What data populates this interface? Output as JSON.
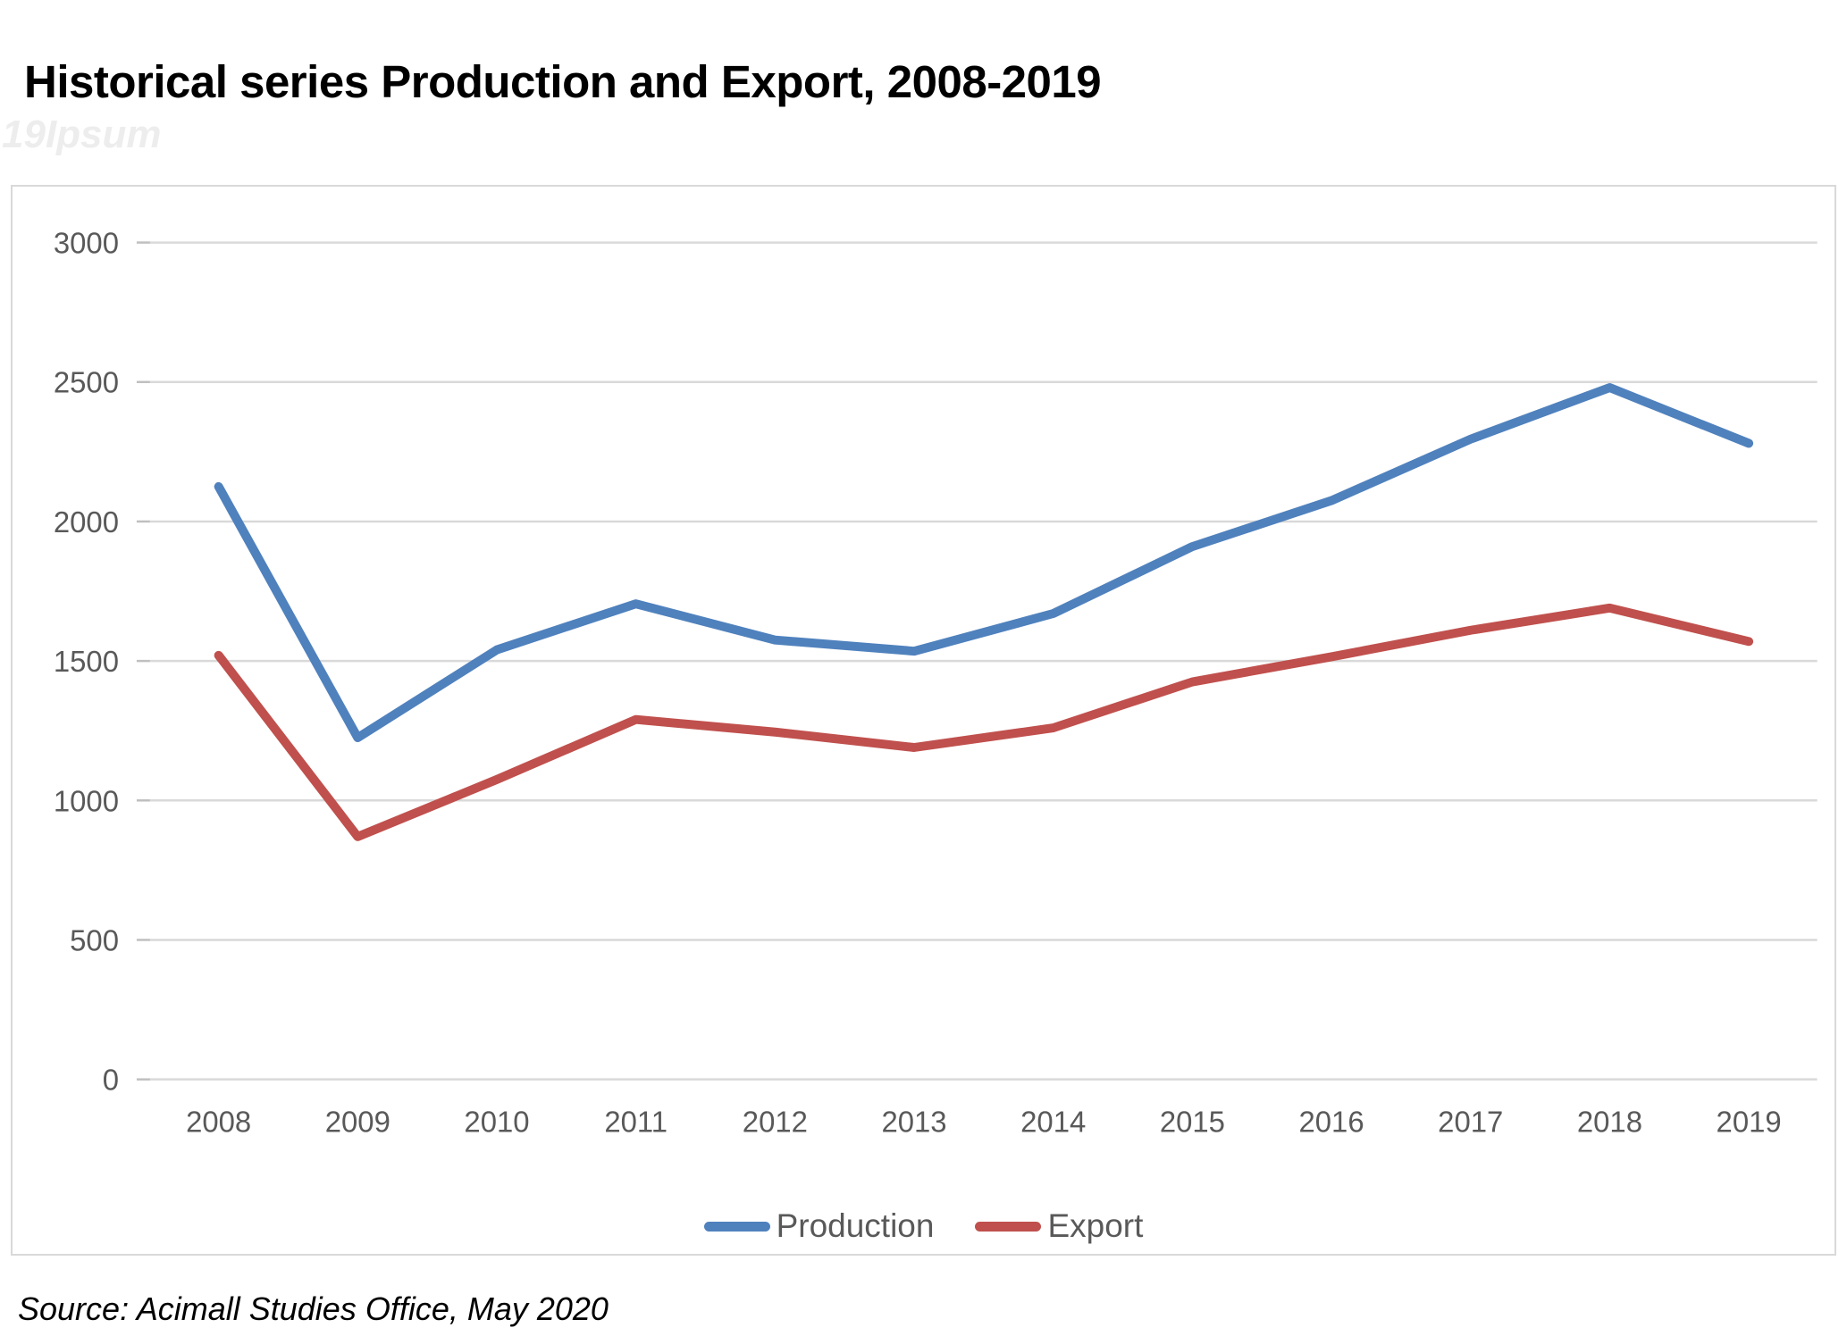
{
  "title": "Historical series Production and Export, 2008-2019",
  "watermark": "19Ipsum",
  "source": "Source: Acimall Studies Office, May 2020",
  "colors": {
    "production": "#4F81BD",
    "export": "#C0504D",
    "gridline": "#d9d9d9",
    "tick": "#bfbfbf",
    "axis_text": "#595959",
    "border": "#d9d9d9"
  },
  "chart_data": {
    "type": "line",
    "title": "Historical series Production and Export, 2008-2019",
    "categories": [
      "2008",
      "2009",
      "2010",
      "2011",
      "2012",
      "2013",
      "2014",
      "2015",
      "2016",
      "2017",
      "2018",
      "2019"
    ],
    "series": [
      {
        "name": "Production",
        "color": "#4F81BD",
        "values": [
          2125,
          1225,
          1540,
          1705,
          1575,
          1535,
          1670,
          1910,
          2075,
          2295,
          2480,
          2280
        ]
      },
      {
        "name": "Export",
        "color": "#C0504D",
        "values": [
          1520,
          870,
          1075,
          1290,
          1245,
          1190,
          1260,
          1425,
          1515,
          1610,
          1690,
          1570
        ]
      }
    ],
    "xlabel": "",
    "ylabel": "",
    "ylim": [
      0,
      3000
    ],
    "yticks": [
      0,
      500,
      1000,
      1500,
      2000,
      2500,
      3000
    ],
    "grid": true,
    "legend_position": "bottom"
  }
}
